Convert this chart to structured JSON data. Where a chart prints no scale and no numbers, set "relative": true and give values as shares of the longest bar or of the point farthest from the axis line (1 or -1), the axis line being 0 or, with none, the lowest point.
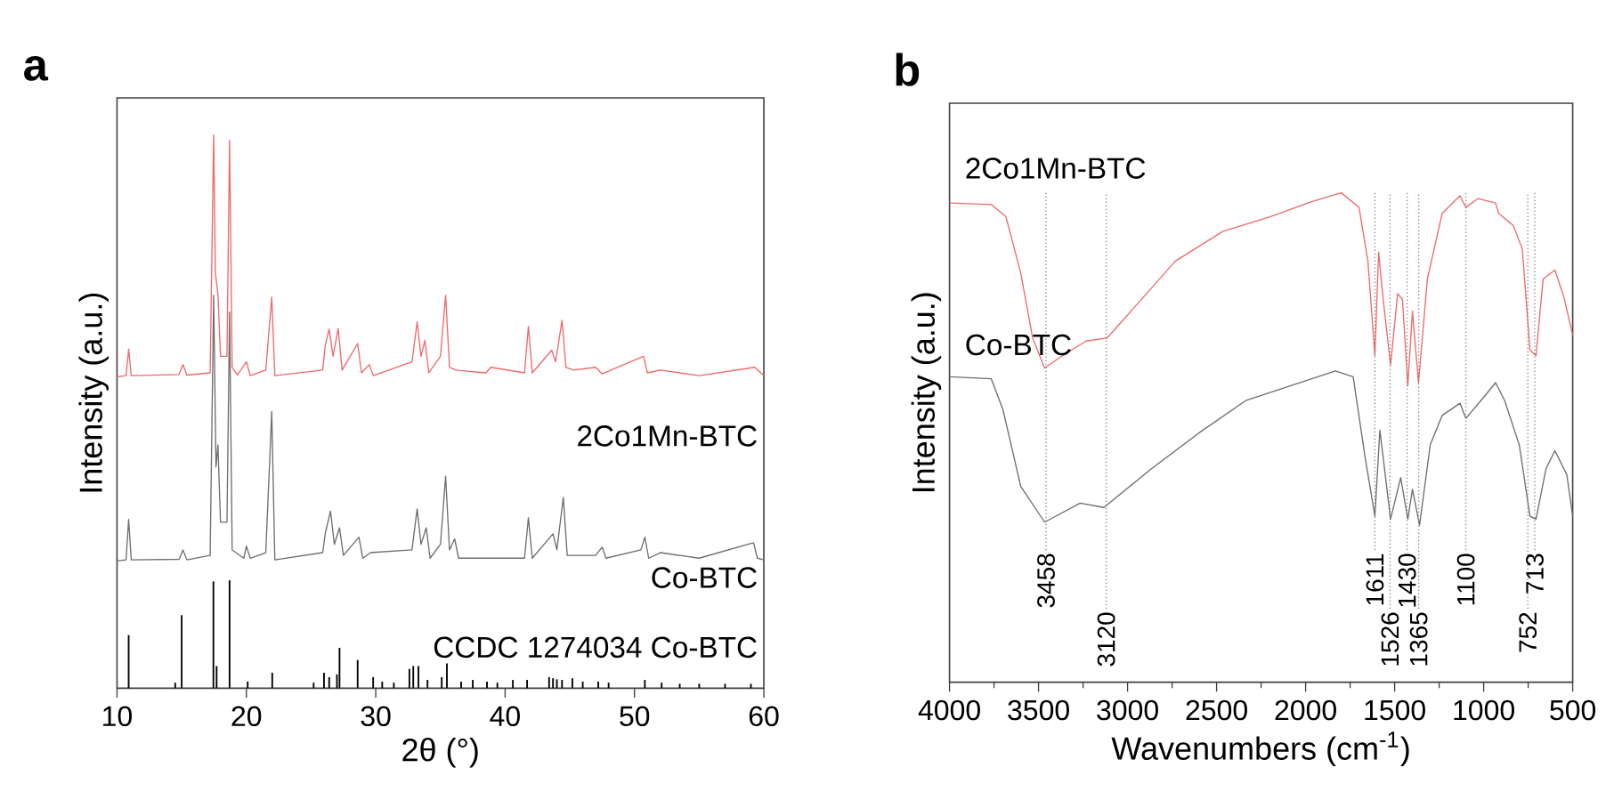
{
  "chart_data": [
    {
      "type": "line",
      "title": "a",
      "xlabel": "2θ (°)",
      "ylabel": "Intensity (a.u.)",
      "xlim": [
        10,
        60
      ],
      "xticks": [
        10,
        20,
        30,
        40,
        50,
        60
      ],
      "relative": true,
      "tick_labels": "x",
      "series": [
        {
          "name": "2Co1Mn-BTC",
          "color": "#f0686a",
          "x": [
            10,
            10.7,
            10.9,
            11.1,
            14.8,
            15.1,
            15.4,
            17.2,
            17.47,
            17.6,
            17.8,
            18.0,
            18.5,
            18.7,
            18.9,
            19.3,
            20.0,
            20.3,
            21.5,
            21.96,
            22.2,
            25.9,
            26.1,
            26.4,
            26.7,
            27.1,
            27.4,
            28.6,
            28.9,
            29.5,
            29.8,
            32.8,
            33.2,
            33.5,
            33.8,
            34.1,
            35.0,
            35.4,
            35.7,
            36.2,
            38.5,
            38.9,
            41.5,
            41.8,
            42.1,
            43.6,
            43.9,
            44.4,
            44.7,
            45.3,
            47.0,
            47.5,
            50.7,
            51.0,
            52.0,
            55.0,
            59.3,
            60
          ],
          "values": [
            0.563,
            0.565,
            0.613,
            0.565,
            0.567,
            0.585,
            0.566,
            0.57,
            1.0,
            0.75,
            0.713,
            0.6,
            0.6,
            0.99,
            0.58,
            0.566,
            0.59,
            0.565,
            0.575,
            0.707,
            0.565,
            0.575,
            0.62,
            0.649,
            0.6,
            0.65,
            0.575,
            0.623,
            0.57,
            0.585,
            0.565,
            0.59,
            0.662,
            0.6,
            0.629,
            0.57,
            0.6,
            0.71,
            0.58,
            0.575,
            0.57,
            0.58,
            0.57,
            0.654,
            0.57,
            0.611,
            0.59,
            0.665,
            0.58,
            0.575,
            0.58,
            0.568,
            0.6,
            0.57,
            0.575,
            0.565,
            0.58,
            0.565
          ]
        },
        {
          "name": "Co-BTC",
          "color": "#6e6e6e",
          "x": [
            10,
            10.7,
            10.9,
            11.1,
            14.8,
            15.1,
            15.4,
            17.2,
            17.47,
            17.65,
            17.8,
            18.0,
            18.5,
            18.7,
            18.9,
            19.8,
            20.0,
            20.3,
            21.5,
            21.96,
            22.2,
            25.9,
            26.1,
            26.5,
            26.8,
            27.2,
            27.5,
            28.7,
            29.0,
            29.6,
            32.8,
            33.2,
            33.5,
            33.9,
            34.2,
            35.0,
            35.4,
            35.7,
            36.1,
            36.4,
            41.5,
            41.8,
            42.1,
            43.7,
            44.0,
            44.5,
            44.8,
            47.0,
            47.5,
            47.8,
            50.5,
            50.8,
            51.1,
            52.0,
            55.0,
            59.2,
            59.5,
            60
          ],
          "values": [
            0.23,
            0.232,
            0.305,
            0.232,
            0.233,
            0.25,
            0.232,
            0.24,
            0.71,
            0.4,
            0.44,
            0.3,
            0.3,
            0.68,
            0.25,
            0.235,
            0.257,
            0.235,
            0.245,
            0.5,
            0.232,
            0.245,
            0.28,
            0.32,
            0.26,
            0.29,
            0.24,
            0.273,
            0.235,
            0.245,
            0.25,
            0.324,
            0.26,
            0.29,
            0.235,
            0.26,
            0.383,
            0.25,
            0.27,
            0.235,
            0.235,
            0.308,
            0.235,
            0.279,
            0.25,
            0.345,
            0.24,
            0.24,
            0.255,
            0.235,
            0.25,
            0.273,
            0.235,
            0.245,
            0.235,
            0.263,
            0.235,
            0.232
          ]
        },
        {
          "name": "CCDC 1274034 Co-BTC",
          "type": "bar",
          "color": "#000000",
          "x": [
            10.9,
            14.5,
            15.0,
            17.45,
            17.7,
            18.7,
            20.1,
            22.0,
            25.2,
            26.0,
            26.4,
            27.0,
            27.2,
            28.6,
            29.8,
            30.5,
            31.4,
            32.6,
            32.9,
            33.3,
            34.0,
            35.1,
            35.5,
            36.6,
            37.5,
            38.6,
            39.4,
            40.6,
            41.7,
            43.4,
            43.7,
            44.0,
            44.4,
            45.2,
            46.0,
            47.2,
            48.0,
            50.8,
            52.1,
            53.5,
            55.0,
            57.0,
            59.0
          ],
          "values": [
            0.096,
            0.01,
            0.132,
            0.193,
            0.04,
            0.195,
            0.012,
            0.028,
            0.01,
            0.028,
            0.02,
            0.025,
            0.073,
            0.051,
            0.02,
            0.012,
            0.01,
            0.035,
            0.04,
            0.04,
            0.015,
            0.02,
            0.045,
            0.012,
            0.015,
            0.012,
            0.01,
            0.015,
            0.015,
            0.02,
            0.018,
            0.016,
            0.015,
            0.018,
            0.012,
            0.012,
            0.01,
            0.015,
            0.01,
            0.008,
            0.008,
            0.008,
            0.008
          ]
        }
      ]
    },
    {
      "type": "line",
      "title": "b",
      "xlabel": "Wavenumbers (cm$^{-1}$)",
      "ylabel": "Intensity (a.u.)",
      "xlim": [
        4000,
        500
      ],
      "relative": true,
      "tick_labels": "x",
      "xticks": [
        4000,
        {
          "value": 3750,
          "label": null
        },
        3500,
        {
          "value": 3250,
          "label": null
        },
        3000,
        {
          "value": 2750,
          "label": null
        },
        2500,
        {
          "value": 2250,
          "label": null
        },
        2000,
        {
          "value": 1750,
          "label": null
        },
        1500,
        {
          "value": 1250,
          "label": null
        },
        1000,
        {
          "value": 750,
          "label": null
        },
        500
      ],
      "series": [
        {
          "name": "2Co1Mn-BTC",
          "color": "#f0686a",
          "x": [
            4000,
            3766,
            3683,
            3600,
            3533,
            3466,
            3366,
            3233,
            3116,
            2966,
            2733,
            2466,
            2200,
            1966,
            1800,
            1700,
            1650,
            1611,
            1590,
            1566,
            1523,
            1483,
            1456,
            1426,
            1400,
            1366,
            1316,
            1233,
            1133,
            1100,
            1033,
            933,
            916,
            833,
            783,
            740,
            706,
            666,
            600,
            550,
            500
          ],
          "values": [
            0.979,
            0.976,
            0.951,
            0.836,
            0.703,
            0.642,
            0.667,
            0.697,
            0.703,
            0.764,
            0.86,
            0.921,
            0.951,
            0.982,
            1.0,
            0.97,
            0.86,
            0.667,
            0.879,
            0.788,
            0.648,
            0.794,
            0.782,
            0.606,
            0.758,
            0.612,
            0.824,
            0.958,
            0.994,
            0.97,
            0.988,
            0.979,
            0.958,
            0.933,
            0.885,
            0.679,
            0.667,
            0.824,
            0.842,
            0.788,
            0.709
          ]
        },
        {
          "name": "Co-BTC",
          "color": "#6e6e6e",
          "x": [
            4000,
            3766,
            3700,
            3600,
            3466,
            3266,
            3133,
            2866,
            2600,
            2333,
            1833,
            1733,
            1666,
            1611,
            1583,
            1523,
            1466,
            1426,
            1400,
            1360,
            1300,
            1233,
            1133,
            1100,
            1000,
            933,
            883,
            800,
            740,
            706,
            650,
            600,
            533,
            500
          ],
          "values": [
            0.624,
            0.62,
            0.557,
            0.4,
            0.327,
            0.366,
            0.357,
            0.436,
            0.509,
            0.576,
            0.636,
            0.624,
            0.46,
            0.339,
            0.515,
            0.333,
            0.418,
            0.333,
            0.394,
            0.321,
            0.485,
            0.545,
            0.57,
            0.539,
            0.582,
            0.612,
            0.576,
            0.485,
            0.339,
            0.333,
            0.436,
            0.473,
            0.424,
            0.339
          ]
        }
      ],
      "ref_lines": [
        {
          "axis": "x",
          "value": 3458,
          "label": "3458",
          "color": "#808080",
          "line_style": "dotted"
        },
        {
          "axis": "x",
          "value": 3120,
          "label": "3120",
          "color": "#808080",
          "line_style": "dotted"
        },
        {
          "axis": "x",
          "value": 1611,
          "label": "1611",
          "color": "#808080",
          "line_style": "dotted"
        },
        {
          "axis": "x",
          "value": 1526,
          "label": "1526",
          "color": "#808080",
          "line_style": "dotted"
        },
        {
          "axis": "x",
          "value": 1430,
          "label": "1430",
          "color": "#808080",
          "line_style": "dotted"
        },
        {
          "axis": "x",
          "value": 1365,
          "label": "1365",
          "color": "#808080",
          "line_style": "dotted"
        },
        {
          "axis": "x",
          "value": 1100,
          "label": "1100",
          "color": "#808080",
          "line_style": "dotted"
        },
        {
          "axis": "x",
          "value": 752,
          "label": "752",
          "color": "#808080",
          "line_style": "dotted"
        },
        {
          "axis": "x",
          "value": 713,
          "label": "713",
          "color": "#808080",
          "line_style": "dotted"
        }
      ]
    }
  ]
}
